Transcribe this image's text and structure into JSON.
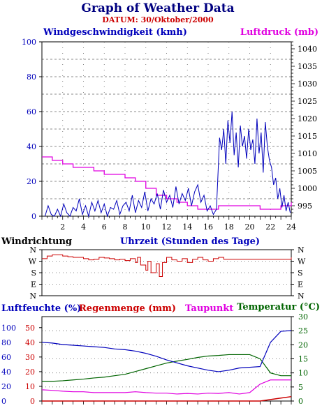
{
  "header": {
    "title": "Graph of Weather Data",
    "subtitle": "DATUM: 30/Oktober/2000"
  },
  "colors": {
    "wind": "#0000bb",
    "pressure": "#e000e0",
    "direction": "#cc0000",
    "humidity": "#0000bb",
    "rain": "#cc0000",
    "dewpoint": "#e000e0",
    "temperature": "#006400",
    "title": "#000080"
  },
  "chart_data": [
    {
      "type": "line",
      "name": "wind-pressure",
      "left_label": "Windgeschwindigkeit (kmh)",
      "right_label": "Luftdruck (mb)",
      "x_label": "Uhrzeit (Stunden des Tage)",
      "xlim": [
        0,
        24
      ],
      "x_ticks": [
        "2",
        "4",
        "6",
        "8",
        "10",
        "12",
        "14",
        "16",
        "18",
        "20",
        "22",
        "24"
      ],
      "y_left_lim": [
        0,
        100
      ],
      "y_left_ticks": [
        "0",
        "20",
        "40",
        "60",
        "80",
        "100"
      ],
      "y_right_lim": [
        992,
        1042
      ],
      "y_right_ticks": [
        "995",
        "1000",
        "1005",
        "1010",
        "1015",
        "1020",
        "1025",
        "1030",
        "1035",
        "1040"
      ],
      "grid": true,
      "wind_series": {
        "x": [
          0.3,
          0.6,
          0.9,
          1.2,
          1.5,
          1.8,
          2.1,
          2.4,
          2.7,
          3.0,
          3.3,
          3.6,
          3.9,
          4.2,
          4.5,
          4.8,
          5.1,
          5.4,
          5.7,
          6.0,
          6.3,
          6.6,
          6.9,
          7.2,
          7.5,
          7.8,
          8.1,
          8.4,
          8.7,
          9.0,
          9.3,
          9.6,
          9.9,
          10.2,
          10.5,
          10.8,
          11.1,
          11.4,
          11.7,
          12.0,
          12.3,
          12.6,
          12.9,
          13.2,
          13.5,
          13.8,
          14.1,
          14.4,
          14.7,
          15.0,
          15.3,
          15.6,
          15.9,
          16.2,
          16.5,
          16.8,
          17.1,
          17.3,
          17.5,
          17.7,
          17.9,
          18.1,
          18.3,
          18.5,
          18.7,
          18.9,
          19.1,
          19.3,
          19.5,
          19.7,
          19.9,
          20.1,
          20.3,
          20.5,
          20.7,
          20.9,
          21.1,
          21.3,
          21.5,
          21.7,
          21.9,
          22.1,
          22.3,
          22.5,
          22.7,
          22.9,
          23.1,
          23.3,
          23.5,
          23.7,
          23.9
        ],
        "values": [
          0,
          6,
          1,
          0,
          4,
          0,
          7,
          2,
          0,
          5,
          3,
          10,
          1,
          6,
          0,
          8,
          3,
          9,
          2,
          7,
          0,
          5,
          4,
          9,
          1,
          6,
          8,
          3,
          12,
          2,
          9,
          5,
          14,
          3,
          10,
          7,
          13,
          4,
          15,
          8,
          12,
          5,
          17,
          7,
          13,
          9,
          16,
          6,
          14,
          18,
          8,
          12,
          3,
          6,
          1,
          4,
          45,
          38,
          50,
          30,
          55,
          42,
          60,
          35,
          48,
          28,
          52,
          40,
          46,
          33,
          50,
          38,
          44,
          30,
          56,
          36,
          48,
          25,
          54,
          40,
          32,
          28,
          18,
          22,
          10,
          16,
          5,
          12,
          3,
          8,
          2
        ]
      },
      "pressure_series": {
        "x": [
          0,
          1,
          2,
          3,
          4,
          5,
          6,
          7,
          8,
          9,
          10,
          11,
          12,
          13,
          14,
          15,
          16,
          17,
          18,
          19,
          20,
          21,
          22,
          23,
          24
        ],
        "values": [
          1009,
          1008,
          1007,
          1006,
          1006,
          1005,
          1004,
          1004,
          1003,
          1002,
          1000,
          998,
          997,
          996,
          995,
          994,
          994,
          995,
          995,
          995,
          995,
          994,
          994,
          995,
          996
        ]
      }
    },
    {
      "type": "line",
      "name": "wind-direction",
      "title": "Windrichtung",
      "y_ticks_left": [
        "N",
        "W",
        "S",
        "E",
        "N"
      ],
      "y_ticks_right": [
        "N",
        "W",
        "S",
        "E",
        "N"
      ],
      "y_categories": [
        "N",
        "E",
        "S",
        "W",
        "N"
      ],
      "xlim": [
        0,
        24
      ],
      "direction_series": {
        "x": [
          0,
          0.5,
          1,
          1.5,
          2,
          2.5,
          3,
          3.5,
          4,
          4.5,
          5,
          5.5,
          6,
          6.5,
          7,
          7.5,
          8,
          8.5,
          9,
          9.2,
          9.5,
          10,
          10.2,
          10.5,
          11,
          11.3,
          11.6,
          12,
          12.5,
          13,
          13.5,
          14,
          14.5,
          15,
          15.5,
          16,
          16.5,
          17,
          17.5,
          18,
          18.5,
          19,
          19.5,
          20,
          20.5,
          21,
          21.5,
          22,
          22.5,
          23,
          23.5,
          24
        ],
        "values": [
          290,
          310,
          320,
          320,
          310,
          305,
          300,
          300,
          290,
          280,
          285,
          300,
          295,
          290,
          280,
          285,
          275,
          290,
          260,
          300,
          240,
          200,
          270,
          180,
          250,
          150,
          260,
          300,
          280,
          270,
          290,
          260,
          285,
          300,
          280,
          270,
          290,
          300,
          285,
          285,
          285,
          285,
          285,
          285,
          285,
          285,
          285,
          285,
          285,
          285,
          285,
          300
        ]
      }
    },
    {
      "type": "line",
      "name": "humidity-rain-dew-temp",
      "humidity_label": "Luftfeuchte (%)",
      "rain_label": "Regenmenge (mm)",
      "dew_label": "Taupunkt",
      "temp_label": "Temperatur (°C)",
      "temp_unit_note": "(",
      "xlim": [
        0,
        24
      ],
      "humidity_ticks": [
        "0",
        "20",
        "40",
        "60",
        "80",
        "100"
      ],
      "rain_ticks": [
        "0",
        "10",
        "20",
        "30",
        "40",
        "50"
      ],
      "temp_ticks": [
        "0",
        "5",
        "10",
        "15",
        "20",
        "25",
        "30"
      ],
      "humidity_series": {
        "x": [
          0,
          1,
          2,
          3,
          4,
          5,
          6,
          7,
          8,
          9,
          10,
          11,
          12,
          13,
          14,
          15,
          16,
          17,
          18,
          19,
          20,
          21,
          22,
          23,
          24
        ],
        "values": [
          80,
          79,
          77,
          76,
          75,
          74,
          73,
          71,
          70,
          68,
          65,
          61,
          56,
          52,
          48,
          45,
          42,
          40,
          42,
          45,
          46,
          47,
          80,
          95,
          96
        ]
      },
      "rain_series": {
        "x": [
          0,
          20,
          21,
          22,
          23,
          24
        ],
        "values": [
          0,
          0,
          0,
          1,
          2,
          3
        ]
      },
      "dewpoint_series": {
        "x": [
          0,
          1,
          2,
          3,
          4,
          5,
          6,
          7,
          8,
          9,
          10,
          11,
          12,
          13,
          14,
          15,
          16,
          17,
          18,
          19,
          20,
          21,
          22,
          23,
          24
        ],
        "values": [
          4.0,
          3.8,
          3.5,
          3.3,
          3.3,
          3.0,
          3.0,
          3.0,
          3.0,
          3.3,
          3.0,
          2.8,
          2.8,
          2.5,
          2.7,
          2.5,
          2.8,
          2.7,
          3.0,
          2.5,
          3.0,
          6.0,
          7.5,
          7.5,
          7.5
        ]
      },
      "temperature_series": {
        "x": [
          0,
          1,
          2,
          3,
          4,
          5,
          6,
          7,
          8,
          9,
          10,
          11,
          12,
          13,
          14,
          15,
          16,
          17,
          18,
          19,
          20,
          21,
          22,
          23,
          24
        ],
        "values": [
          7.0,
          7.0,
          7.2,
          7.5,
          7.8,
          8.2,
          8.5,
          9.0,
          9.5,
          10.5,
          11.5,
          12.5,
          13.5,
          14.2,
          14.8,
          15.5,
          16.0,
          16.2,
          16.5,
          16.5,
          16.5,
          15.0,
          10.0,
          9.0,
          9.0
        ]
      }
    }
  ]
}
